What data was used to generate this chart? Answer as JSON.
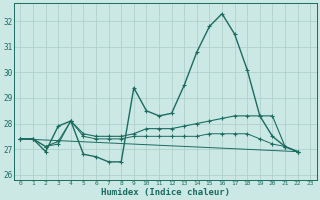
{
  "xlabel": "Humidex (Indice chaleur)",
  "bg_color": "#cce8e4",
  "line_color": "#1a6b60",
  "grid_color": "#aaccc8",
  "xlim": [
    -0.5,
    23.5
  ],
  "ylim": [
    25.8,
    32.7
  ],
  "yticks": [
    26,
    27,
    28,
    29,
    30,
    31,
    32
  ],
  "xticks": [
    0,
    1,
    2,
    3,
    4,
    5,
    6,
    7,
    8,
    9,
    10,
    11,
    12,
    13,
    14,
    15,
    16,
    17,
    18,
    19,
    20,
    21,
    22,
    23
  ],
  "series": [
    {
      "x": [
        0,
        1,
        2,
        3,
        4,
        5,
        6,
        7,
        8,
        9,
        10,
        11,
        12,
        13,
        14,
        15,
        16,
        17,
        18,
        19,
        20,
        21,
        22
      ],
      "y": [
        27.4,
        27.4,
        26.9,
        27.9,
        28.1,
        26.8,
        26.7,
        26.5,
        26.5,
        29.4,
        28.5,
        28.3,
        28.4,
        29.5,
        30.8,
        31.8,
        32.3,
        31.5,
        30.1,
        28.3,
        27.5,
        27.1,
        26.9
      ],
      "lw": 1.0,
      "marker": true
    },
    {
      "x": [
        0,
        1,
        2,
        3,
        4,
        5,
        6,
        7,
        8,
        9,
        10,
        11,
        12,
        13,
        14,
        15,
        16,
        17,
        18,
        19,
        20,
        21,
        22
      ],
      "y": [
        27.4,
        27.4,
        27.1,
        27.3,
        28.1,
        27.6,
        27.5,
        27.5,
        27.5,
        27.6,
        27.8,
        27.8,
        27.8,
        27.9,
        28.0,
        28.1,
        28.2,
        28.3,
        28.3,
        28.3,
        28.3,
        27.1,
        26.9
      ],
      "lw": 0.8,
      "marker": true
    },
    {
      "x": [
        0,
        1,
        2,
        3,
        4,
        5,
        6,
        7,
        8,
        9,
        10,
        11,
        12,
        13,
        14,
        15,
        16,
        17,
        18,
        19,
        20,
        21,
        22
      ],
      "y": [
        27.4,
        27.4,
        27.1,
        27.2,
        28.1,
        27.5,
        27.4,
        27.4,
        27.4,
        27.5,
        27.5,
        27.5,
        27.5,
        27.5,
        27.5,
        27.6,
        27.6,
        27.6,
        27.6,
        27.4,
        27.2,
        27.1,
        26.9
      ],
      "lw": 0.7,
      "marker": true
    },
    {
      "x": [
        0,
        22
      ],
      "y": [
        27.4,
        26.9
      ],
      "lw": 0.7,
      "marker": false
    }
  ]
}
